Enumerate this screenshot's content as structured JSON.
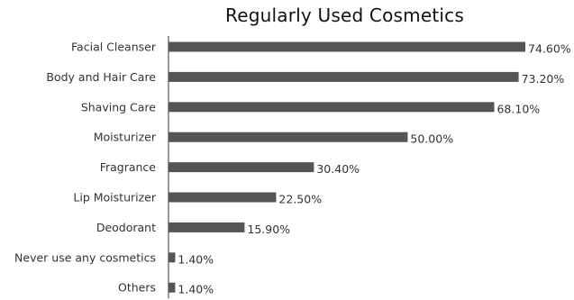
{
  "chart_data": {
    "type": "bar",
    "orientation": "horizontal",
    "title": "Regularly Used Cosmetics",
    "categories": [
      "Facial Cleanser",
      "Body and Hair Care",
      "Shaving Care",
      "Moisturizer",
      "Fragrance",
      "Lip Moisturizer",
      "Deodorant",
      "Never use any cosmetics",
      "Others"
    ],
    "values": [
      74.6,
      73.2,
      68.1,
      50.0,
      30.4,
      22.5,
      15.9,
      1.4,
      1.4
    ],
    "value_labels": [
      "74.60%",
      "73.20%",
      "68.10%",
      "50.00%",
      "30.40%",
      "22.50%",
      "15.90%",
      "1.40%",
      "1.40%"
    ],
    "xlim": [
      0,
      74.6
    ],
    "grid": false,
    "legend": "none",
    "bar_color": "#555555",
    "axis_color": "#333333"
  }
}
